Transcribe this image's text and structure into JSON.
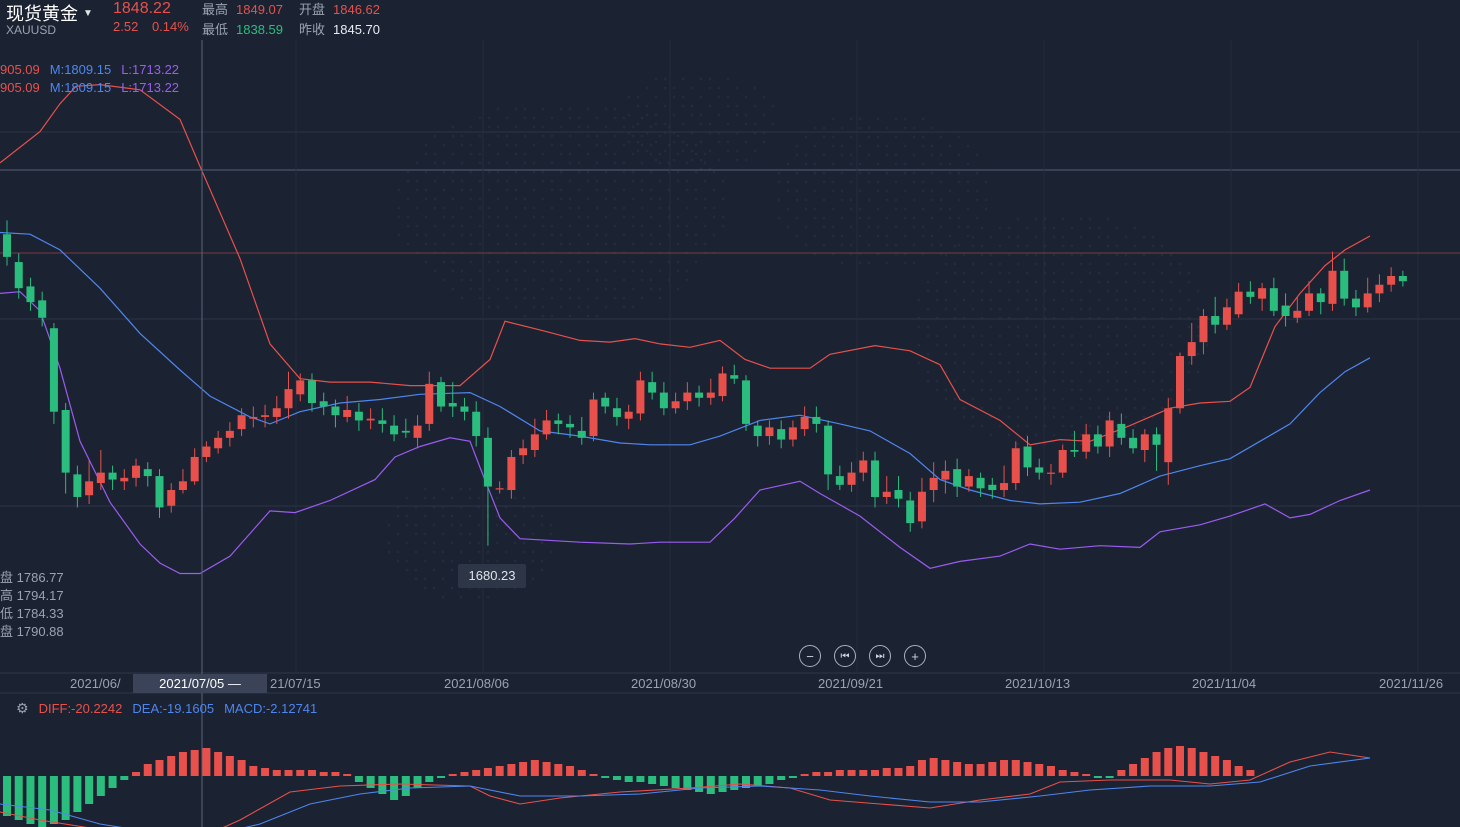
{
  "instrument": {
    "name": "现货黄金",
    "symbol": "XAUUSD",
    "price": "1848.22",
    "change": "2.52",
    "change_pct": "0.14%"
  },
  "stats": {
    "high_label": "最高",
    "high": "1849.07",
    "open_label": "开盘",
    "open": "1846.62",
    "low_label": "最低",
    "low": "1838.59",
    "prev_close_label": "昨收",
    "prev_close": "1845.70"
  },
  "boll_rows": [
    {
      "u": "905.09",
      "m": "M:1809.15",
      "l": "L:1713.22"
    },
    {
      "u": "905.09",
      "m": "M:1809.15",
      "l": "L:1713.22"
    }
  ],
  "cursor_ohlc": [
    {
      "label": "盘",
      "value": "1786.77"
    },
    {
      "label": "高",
      "value": "1794.17"
    },
    {
      "label": "低",
      "value": "1784.33"
    },
    {
      "label": "盘",
      "value": "1790.88"
    }
  ],
  "low_marker": "1680.23",
  "x_axis": {
    "labels": [
      "2021/06/",
      "21/07/15",
      "2021/08/06",
      "2021/08/30",
      "2021/09/21",
      "2021/10/13",
      "2021/11/04",
      "2021/11/26"
    ],
    "crosshair_label": "2021/07/05 —"
  },
  "controls": {
    "zoom_out": "−",
    "prev": "⏮",
    "next": "⏭",
    "zoom_in": "+"
  },
  "macd": {
    "diff": "DIFF:-20.2242",
    "dea": "DEA:-19.1605",
    "macd": "MACD:-2.12741"
  },
  "colors": {
    "up": "#e8514b",
    "down": "#2bbd7e",
    "upper_band": "#e8514b",
    "middle_band": "#4f86ee",
    "lower_band": "#9b5cf0",
    "background": "#1b2232"
  },
  "candles": [
    [
      1859,
      1846,
      1867,
      1841
    ],
    [
      1843,
      1828,
      1848,
      1822
    ],
    [
      1829,
      1820,
      1834,
      1815
    ],
    [
      1821,
      1811,
      1826,
      1806
    ],
    [
      1805,
      1757,
      1808,
      1750
    ],
    [
      1758,
      1722,
      1762,
      1710
    ],
    [
      1721,
      1708,
      1726,
      1702
    ],
    [
      1709,
      1717,
      1729,
      1704
    ],
    [
      1716,
      1722,
      1735,
      1712
    ],
    [
      1722,
      1718,
      1726,
      1712
    ],
    [
      1717,
      1719,
      1724,
      1712
    ],
    [
      1719,
      1726,
      1730,
      1714
    ],
    [
      1724,
      1720,
      1728,
      1714
    ],
    [
      1720,
      1702,
      1724,
      1696
    ],
    [
      1703,
      1712,
      1716,
      1699
    ],
    [
      1712,
      1717,
      1724,
      1710
    ],
    [
      1717,
      1731,
      1736,
      1715
    ],
    [
      1731,
      1737,
      1740,
      1728
    ],
    [
      1736,
      1742,
      1746,
      1733
    ],
    [
      1742,
      1746,
      1751,
      1737
    ],
    [
      1747,
      1755,
      1759,
      1743
    ],
    [
      1753,
      1754,
      1760,
      1748
    ],
    [
      1754,
      1755,
      1761,
      1748
    ],
    [
      1754,
      1759,
      1766,
      1750
    ],
    [
      1759,
      1770,
      1780,
      1753
    ],
    [
      1767,
      1775,
      1779,
      1763
    ],
    [
      1775,
      1762,
      1779,
      1757
    ],
    [
      1763,
      1760,
      1768,
      1755
    ],
    [
      1760,
      1755,
      1764,
      1748
    ],
    [
      1754,
      1758,
      1766,
      1751
    ],
    [
      1757,
      1752,
      1762,
      1746
    ],
    [
      1752,
      1753,
      1759,
      1747
    ],
    [
      1752,
      1750,
      1759,
      1745
    ],
    [
      1749,
      1744,
      1755,
      1740
    ],
    [
      1746,
      1745,
      1753,
      1742
    ],
    [
      1742,
      1749,
      1755,
      1736
    ],
    [
      1750,
      1773,
      1780,
      1746
    ],
    [
      1774,
      1760,
      1777,
      1757
    ],
    [
      1762,
      1760,
      1774,
      1754
    ],
    [
      1760,
      1757,
      1765,
      1752
    ],
    [
      1757,
      1743,
      1763,
      1737
    ],
    [
      1742,
      1714,
      1748,
      1680
    ],
    [
      1713,
      1713,
      1717,
      1710
    ],
    [
      1712,
      1731,
      1735,
      1707
    ],
    [
      1732,
      1736,
      1741,
      1727
    ],
    [
      1735,
      1744,
      1753,
      1731
    ],
    [
      1744,
      1752,
      1758,
      1741
    ],
    [
      1752,
      1750,
      1756,
      1744
    ],
    [
      1750,
      1748,
      1755,
      1742
    ],
    [
      1746,
      1742,
      1754,
      1738
    ],
    [
      1743,
      1764,
      1768,
      1740
    ],
    [
      1765,
      1760,
      1768,
      1756
    ],
    [
      1759,
      1754,
      1765,
      1749
    ],
    [
      1753,
      1757,
      1761,
      1747
    ],
    [
      1756,
      1775,
      1780,
      1752
    ],
    [
      1774,
      1768,
      1780,
      1764
    ],
    [
      1768,
      1759,
      1774,
      1755
    ],
    [
      1759,
      1763,
      1768,
      1756
    ],
    [
      1763,
      1768,
      1774,
      1758
    ],
    [
      1768,
      1765,
      1772,
      1760
    ],
    [
      1765,
      1768,
      1776,
      1761
    ],
    [
      1766,
      1779,
      1783,
      1763
    ],
    [
      1778,
      1776,
      1784,
      1773
    ],
    [
      1775,
      1750,
      1778,
      1746
    ],
    [
      1749,
      1743,
      1752,
      1737
    ],
    [
      1743,
      1748,
      1752,
      1738
    ],
    [
      1747,
      1741,
      1752,
      1736
    ],
    [
      1741,
      1748,
      1752,
      1737
    ],
    [
      1747,
      1754,
      1760,
      1743
    ],
    [
      1754,
      1750,
      1760,
      1745
    ],
    [
      1749,
      1721,
      1752,
      1712
    ],
    [
      1720,
      1715,
      1726,
      1712
    ],
    [
      1715,
      1722,
      1728,
      1711
    ],
    [
      1722,
      1729,
      1734,
      1717
    ],
    [
      1729,
      1708,
      1734,
      1702
    ],
    [
      1708,
      1711,
      1720,
      1704
    ],
    [
      1712,
      1707,
      1720,
      1702
    ],
    [
      1706,
      1693,
      1711,
      1688
    ],
    [
      1694,
      1711,
      1719,
      1690
    ],
    [
      1712,
      1719,
      1728,
      1705
    ],
    [
      1718,
      1723,
      1729,
      1710
    ],
    [
      1724,
      1714,
      1730,
      1708
    ],
    [
      1714,
      1720,
      1724,
      1711
    ],
    [
      1719,
      1713,
      1722,
      1708
    ],
    [
      1715,
      1712,
      1719,
      1707
    ],
    [
      1712,
      1716,
      1726,
      1708
    ],
    [
      1716,
      1736,
      1740,
      1712
    ],
    [
      1737,
      1725,
      1743,
      1720
    ],
    [
      1725,
      1722,
      1730,
      1718
    ],
    [
      1722,
      1722,
      1727,
      1715
    ],
    [
      1722,
      1735,
      1738,
      1719
    ],
    [
      1735,
      1734,
      1746,
      1731
    ],
    [
      1734,
      1744,
      1750,
      1730
    ],
    [
      1744,
      1737,
      1749,
      1733
    ],
    [
      1737,
      1752,
      1757,
      1731
    ],
    [
      1750,
      1742,
      1756,
      1738
    ],
    [
      1742,
      1736,
      1747,
      1733
    ],
    [
      1735,
      1744,
      1747,
      1728
    ],
    [
      1744,
      1738,
      1748,
      1723
    ],
    [
      1728,
      1759,
      1765,
      1715
    ],
    [
      1759,
      1789,
      1791,
      1756
    ],
    [
      1789,
      1797,
      1808,
      1784
    ],
    [
      1797,
      1812,
      1816,
      1790
    ],
    [
      1812,
      1807,
      1823,
      1802
    ],
    [
      1807,
      1817,
      1822,
      1804
    ],
    [
      1813,
      1826,
      1831,
      1811
    ],
    [
      1826,
      1823,
      1832,
      1819
    ],
    [
      1822,
      1828,
      1831,
      1815
    ],
    [
      1828,
      1815,
      1834,
      1812
    ],
    [
      1818,
      1812,
      1825,
      1806
    ],
    [
      1811,
      1815,
      1823,
      1808
    ],
    [
      1815,
      1825,
      1832,
      1812
    ],
    [
      1825,
      1820,
      1828,
      1813
    ],
    [
      1819,
      1838,
      1849,
      1815
    ],
    [
      1838,
      1822,
      1845,
      1818
    ],
    [
      1822,
      1817,
      1827,
      1812
    ],
    [
      1817,
      1825,
      1834,
      1814
    ],
    [
      1825,
      1830,
      1836,
      1820
    ],
    [
      1830,
      1835,
      1840,
      1826
    ],
    [
      1835,
      1832,
      1838,
      1829
    ]
  ],
  "boll_upper": [
    [
      0,
      1900
    ],
    [
      40,
      1918
    ],
    [
      60,
      1934
    ],
    [
      76,
      1944
    ],
    [
      100,
      1945
    ],
    [
      140,
      1942
    ],
    [
      180,
      1925
    ],
    [
      200,
      1898
    ],
    [
      240,
      1845
    ],
    [
      270,
      1796
    ],
    [
      300,
      1776
    ],
    [
      330,
      1774
    ],
    [
      370,
      1774
    ],
    [
      410,
      1772
    ],
    [
      460,
      1772
    ],
    [
      490,
      1787
    ],
    [
      505,
      1809
    ],
    [
      540,
      1804
    ],
    [
      580,
      1798
    ],
    [
      610,
      1797
    ],
    [
      635,
      1799
    ],
    [
      660,
      1796
    ],
    [
      690,
      1794
    ],
    [
      720,
      1798
    ],
    [
      745,
      1787
    ],
    [
      770,
      1782
    ],
    [
      810,
      1782
    ],
    [
      830,
      1790
    ],
    [
      875,
      1795
    ],
    [
      910,
      1792
    ],
    [
      940,
      1784
    ],
    [
      960,
      1764
    ],
    [
      1000,
      1752
    ],
    [
      1030,
      1738
    ],
    [
      1060,
      1741
    ],
    [
      1090,
      1740
    ],
    [
      1130,
      1749
    ],
    [
      1170,
      1759
    ],
    [
      1200,
      1762
    ],
    [
      1230,
      1763
    ],
    [
      1250,
      1771
    ],
    [
      1275,
      1806
    ],
    [
      1300,
      1825
    ],
    [
      1325,
      1841
    ],
    [
      1345,
      1850
    ],
    [
      1370,
      1858
    ]
  ],
  "boll_middle": [
    [
      0,
      1860
    ],
    [
      30,
      1859
    ],
    [
      60,
      1850
    ],
    [
      100,
      1828
    ],
    [
      140,
      1802
    ],
    [
      180,
      1781
    ],
    [
      210,
      1766
    ],
    [
      250,
      1754
    ],
    [
      270,
      1750
    ],
    [
      300,
      1757
    ],
    [
      340,
      1762
    ],
    [
      380,
      1764
    ],
    [
      420,
      1767
    ],
    [
      470,
      1768
    ],
    [
      500,
      1760
    ],
    [
      540,
      1746
    ],
    [
      580,
      1743
    ],
    [
      620,
      1739
    ],
    [
      650,
      1738
    ],
    [
      690,
      1738
    ],
    [
      720,
      1743
    ],
    [
      760,
      1752
    ],
    [
      800,
      1755
    ],
    [
      840,
      1750
    ],
    [
      870,
      1746
    ],
    [
      910,
      1733
    ],
    [
      940,
      1718
    ],
    [
      970,
      1712
    ],
    [
      1010,
      1706
    ],
    [
      1040,
      1704
    ],
    [
      1080,
      1705
    ],
    [
      1120,
      1710
    ],
    [
      1160,
      1720
    ],
    [
      1200,
      1726
    ],
    [
      1230,
      1730
    ],
    [
      1260,
      1740
    ],
    [
      1290,
      1750
    ],
    [
      1320,
      1768
    ],
    [
      1345,
      1780
    ],
    [
      1370,
      1788
    ]
  ],
  "boll_lower": [
    [
      0,
      1825
    ],
    [
      20,
      1826
    ],
    [
      40,
      1815
    ],
    [
      60,
      1782
    ],
    [
      80,
      1740
    ],
    [
      110,
      1705
    ],
    [
      140,
      1681
    ],
    [
      160,
      1670
    ],
    [
      180,
      1664
    ],
    [
      200,
      1664
    ],
    [
      230,
      1674
    ],
    [
      270,
      1700
    ],
    [
      295,
      1699
    ],
    [
      330,
      1706
    ],
    [
      375,
      1718
    ],
    [
      395,
      1731
    ],
    [
      420,
      1737
    ],
    [
      450,
      1742
    ],
    [
      470,
      1740
    ],
    [
      480,
      1725
    ],
    [
      500,
      1696
    ],
    [
      520,
      1684
    ],
    [
      580,
      1682
    ],
    [
      630,
      1681
    ],
    [
      660,
      1682
    ],
    [
      710,
      1682
    ],
    [
      735,
      1696
    ],
    [
      760,
      1712
    ],
    [
      800,
      1717
    ],
    [
      820,
      1710
    ],
    [
      860,
      1697
    ],
    [
      900,
      1679
    ],
    [
      930,
      1667
    ],
    [
      960,
      1671
    ],
    [
      1000,
      1674
    ],
    [
      1030,
      1681
    ],
    [
      1060,
      1678
    ],
    [
      1100,
      1680
    ],
    [
      1140,
      1679
    ],
    [
      1160,
      1688
    ],
    [
      1200,
      1692
    ],
    [
      1230,
      1697
    ],
    [
      1265,
      1704
    ],
    [
      1290,
      1696
    ],
    [
      1310,
      1698
    ],
    [
      1340,
      1706
    ],
    [
      1370,
      1712
    ]
  ],
  "macd_hist": [
    -20,
    -22,
    -24,
    -26,
    -24,
    -22,
    -18,
    -14,
    -10,
    -6,
    -2,
    2,
    6,
    8,
    10,
    12,
    13,
    14,
    12,
    10,
    8,
    5,
    4,
    3,
    3,
    3,
    3,
    2,
    2,
    1,
    -3,
    -6,
    -9,
    -12,
    -10,
    -6,
    -3,
    -1,
    1,
    2,
    3,
    4,
    5,
    6,
    7,
    8,
    7,
    6,
    5,
    3,
    1,
    -1,
    -2,
    -3,
    -3,
    -4,
    -5,
    -6,
    -7,
    -8,
    -9,
    -8,
    -7,
    -6,
    -5,
    -4,
    -2,
    -1,
    1,
    2,
    2,
    3,
    3,
    3,
    3,
    4,
    4,
    5,
    8,
    9,
    8,
    7,
    6,
    6,
    7,
    8,
    8,
    7,
    6,
    5,
    3,
    2,
    1,
    -1,
    -1,
    3,
    6,
    9,
    12,
    14,
    15,
    14,
    12,
    10,
    8,
    5,
    3
  ],
  "macd_diff": [
    [
      0,
      -18
    ],
    [
      40,
      -22
    ],
    [
      90,
      -26
    ],
    [
      140,
      -30
    ],
    [
      200,
      -31
    ],
    [
      240,
      -22
    ],
    [
      290,
      -8
    ],
    [
      340,
      -5
    ],
    [
      400,
      -4
    ],
    [
      470,
      -5
    ],
    [
      490,
      -10
    ],
    [
      520,
      -14
    ],
    [
      560,
      -11
    ],
    [
      620,
      -8
    ],
    [
      690,
      -6
    ],
    [
      740,
      -4
    ],
    [
      790,
      -6
    ],
    [
      830,
      -12
    ],
    [
      880,
      -14
    ],
    [
      930,
      -16
    ],
    [
      980,
      -12
    ],
    [
      1030,
      -9
    ],
    [
      1060,
      -3
    ],
    [
      1110,
      -2
    ],
    [
      1170,
      -2
    ],
    [
      1210,
      -4
    ],
    [
      1250,
      -2
    ],
    [
      1290,
      7
    ],
    [
      1330,
      12
    ],
    [
      1370,
      9
    ]
  ],
  "macd_dea": [
    [
      0,
      -14
    ],
    [
      50,
      -17
    ],
    [
      100,
      -24
    ],
    [
      150,
      -28
    ],
    [
      200,
      -31
    ],
    [
      260,
      -24
    ],
    [
      310,
      -14
    ],
    [
      360,
      -9
    ],
    [
      410,
      -6
    ],
    [
      470,
      -5
    ],
    [
      520,
      -10
    ],
    [
      580,
      -10
    ],
    [
      640,
      -9
    ],
    [
      700,
      -6
    ],
    [
      760,
      -5
    ],
    [
      820,
      -7
    ],
    [
      870,
      -10
    ],
    [
      930,
      -13
    ],
    [
      980,
      -13
    ],
    [
      1040,
      -10
    ],
    [
      1090,
      -7
    ],
    [
      1150,
      -5
    ],
    [
      1210,
      -5
    ],
    [
      1260,
      -3
    ],
    [
      1310,
      5
    ],
    [
      1370,
      9
    ]
  ]
}
